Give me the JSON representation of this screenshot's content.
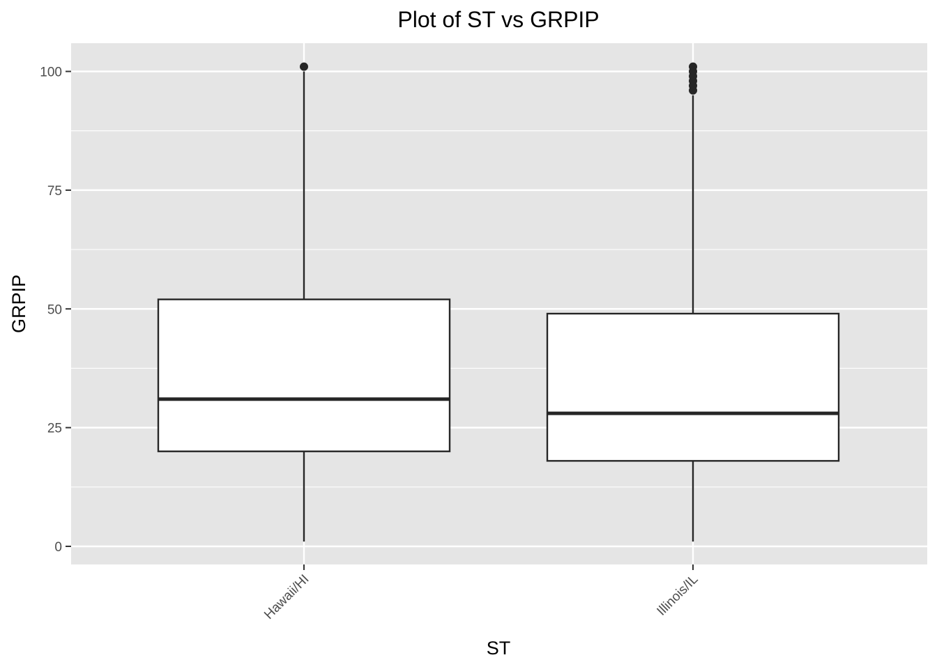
{
  "chart_data": {
    "type": "boxplot",
    "title": "Plot of ST vs GRPIP",
    "xlabel": "ST",
    "ylabel": "GRPIP",
    "categories": [
      "Hawaii/HI",
      "Illinois/IL"
    ],
    "boxes": [
      {
        "category": "Hawaii/HI",
        "whisker_low": 1,
        "q1": 20,
        "median": 31,
        "q3": 52,
        "whisker_high": 100,
        "outliers": [
          101
        ]
      },
      {
        "category": "Illinois/IL",
        "whisker_low": 1,
        "q1": 18,
        "median": 28,
        "q3": 49,
        "whisker_high": 95,
        "outliers": [
          96,
          97,
          98,
          99,
          100,
          101
        ]
      }
    ],
    "y_ticks": [
      0,
      25,
      50,
      75,
      100
    ],
    "y_tick_labels": [
      "0",
      "25",
      "50",
      "75",
      "100"
    ],
    "ylim": [
      -4,
      106
    ],
    "grid": true,
    "colors": {
      "panel_background": "#e5e5e5",
      "grid_major": "#ffffff",
      "box_fill": "#ffffff",
      "box_stroke": "#262626",
      "outlier": "#262626",
      "tick_label": "#4d4d4d"
    }
  }
}
